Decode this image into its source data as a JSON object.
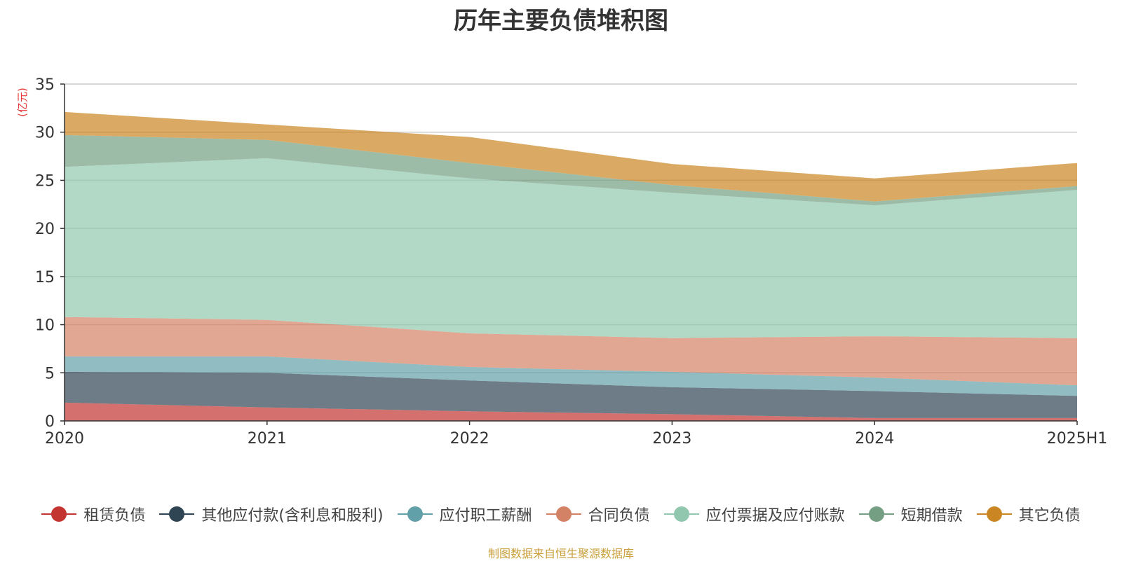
{
  "chart_data": {
    "type": "area",
    "stacked": true,
    "title": "历年主要负债堆积图",
    "ylabel": "(亿元)",
    "xlabel": "",
    "categories": [
      "2020",
      "2021",
      "2022",
      "2023",
      "2024",
      "2025H1"
    ],
    "ylim": [
      0,
      35
    ],
    "yticks": [
      0,
      5,
      10,
      15,
      20,
      25,
      30,
      35
    ],
    "grid": true,
    "legend_position": "bottom",
    "series": [
      {
        "name": "租赁负债",
        "color": "#c23531",
        "values": [
          1.9,
          1.4,
          1.0,
          0.7,
          0.3,
          0.3
        ]
      },
      {
        "name": "其他应付款(含利息和股利)",
        "color": "#2f4554",
        "values": [
          3.2,
          3.6,
          3.2,
          2.8,
          2.8,
          2.3
        ]
      },
      {
        "name": "应付职工薪酬",
        "color": "#61a0a8",
        "values": [
          1.6,
          1.7,
          1.4,
          1.6,
          1.4,
          1.1
        ]
      },
      {
        "name": "合同负债",
        "color": "#d48265",
        "values": [
          4.1,
          3.8,
          3.5,
          3.5,
          4.3,
          4.9
        ]
      },
      {
        "name": "应付票据及应付账款",
        "color": "#91c7ae",
        "values": [
          15.6,
          16.8,
          16.1,
          15.1,
          13.6,
          15.4
        ]
      },
      {
        "name": "短期借款",
        "color": "#749f83",
        "values": [
          3.3,
          1.9,
          1.6,
          0.8,
          0.4,
          0.4
        ]
      },
      {
        "name": "其它负债",
        "color": "#ca8622",
        "values": [
          2.4,
          1.6,
          2.7,
          2.2,
          2.4,
          2.4
        ]
      }
    ]
  },
  "source_note": {
    "text": "制图数据来自恒生聚源数据库",
    "color": "#c9a03c"
  },
  "ylabel_color": "#e53935"
}
